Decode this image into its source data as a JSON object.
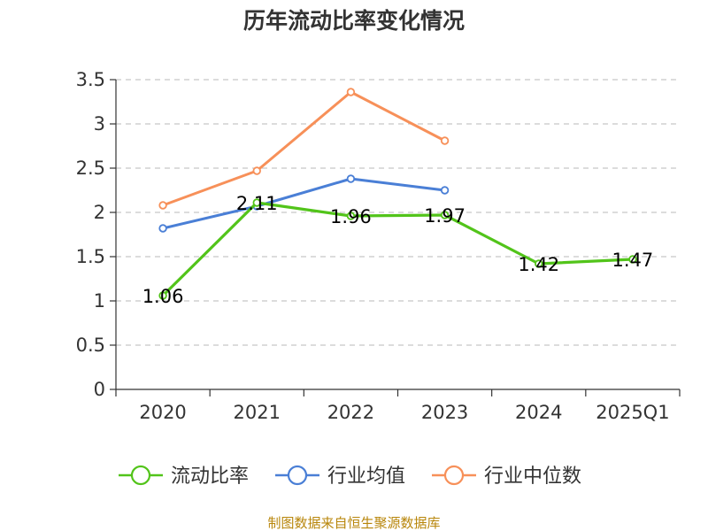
{
  "chart_data": {
    "type": "line",
    "title": "历年流动比率变化情况",
    "categories": [
      "2020",
      "2021",
      "2022",
      "2023",
      "2024",
      "2025Q1"
    ],
    "ylim": [
      0,
      3.5
    ],
    "yticks": [
      "0",
      "0.5",
      "1",
      "1.5",
      "2",
      "2.5",
      "3",
      "3.5"
    ],
    "grid": true,
    "legend_position": "bottom",
    "series": [
      {
        "name": "流动比率",
        "color": "#52c41a",
        "values": [
          1.06,
          2.11,
          1.96,
          1.97,
          1.42,
          1.47
        ],
        "labels": [
          "1.06",
          "2.11",
          "1.96",
          "1.97",
          "1.42",
          "1.47"
        ]
      },
      {
        "name": "行业均值",
        "color": "#4a7fd6",
        "values": [
          1.82,
          2.07,
          2.38,
          2.25,
          null,
          null
        ]
      },
      {
        "name": "行业中位数",
        "color": "#f79059",
        "values": [
          2.08,
          2.47,
          3.36,
          2.81,
          null,
          null
        ]
      }
    ]
  },
  "source": {
    "text": "制图数据来自恒生聚源数据库",
    "color": "#b8860b"
  }
}
